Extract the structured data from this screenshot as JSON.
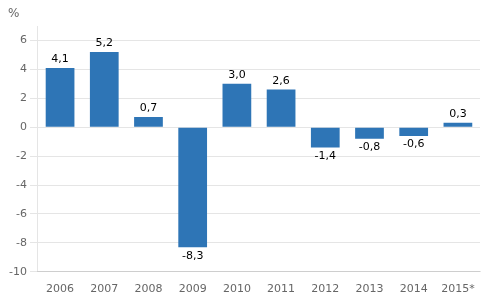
{
  "chart_data": {
    "type": "bar",
    "ylabel": "%",
    "categories": [
      "2006",
      "2007",
      "2008",
      "2009",
      "2010",
      "2011",
      "2012",
      "2013",
      "2014",
      "2015*"
    ],
    "values": [
      4.1,
      5.2,
      0.7,
      -8.3,
      3.0,
      2.6,
      -1.4,
      -0.8,
      -0.6,
      0.3
    ],
    "value_labels": [
      "4,1",
      "5,2",
      "0,7",
      "-8,3",
      "3,0",
      "2,6",
      "-1,4",
      "-0,8",
      "-0,6",
      "0,3"
    ],
    "color": "#2e75b6",
    "ylim": [
      -10,
      7
    ],
    "yticks": [
      -10,
      -8,
      -6,
      -4,
      -2,
      0,
      2,
      4,
      6
    ],
    "grid": true,
    "data_labels": true
  }
}
